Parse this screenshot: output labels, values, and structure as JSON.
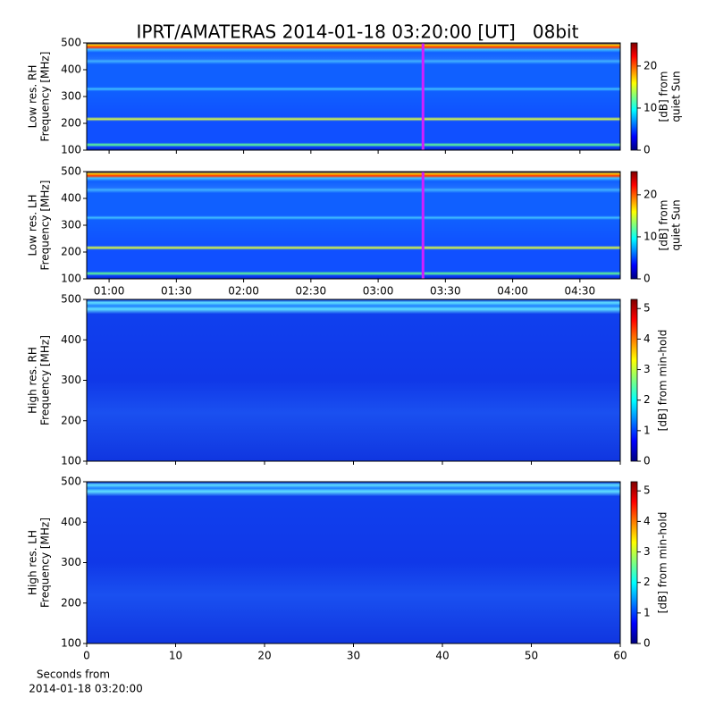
{
  "chart_data": [
    {
      "type": "heatmap",
      "title": "IPRT/AMATERAS 2014-01-18 03:20:00 [UT]   08bit",
      "ylabel": [
        "Low res. RH",
        "Frequency [MHz]"
      ],
      "ylim": [
        100,
        500
      ],
      "yticks": [
        100,
        200,
        300,
        400,
        500
      ],
      "xlim": [
        50,
        288
      ],
      "marker": 200,
      "marker_color": "#d020ff",
      "colorbar_label": [
        "[dB] from",
        "quiet Sun"
      ],
      "clim": [
        0,
        25.5
      ],
      "cticks": [
        0,
        10,
        20
      ]
    },
    {
      "type": "heatmap",
      "ylabel": [
        "Low res. LH",
        "Frequency [MHz]"
      ],
      "ylim": [
        100,
        500
      ],
      "yticks": [
        100,
        200,
        300,
        400,
        500
      ],
      "xlim": [
        50,
        288
      ],
      "xticks": [
        {
          "value": 60,
          "label": "01:00"
        },
        {
          "value": 90,
          "label": "01:30"
        },
        {
          "value": 120,
          "label": "02:00"
        },
        {
          "value": 150,
          "label": "02:30"
        },
        {
          "value": 180,
          "label": "03:00"
        },
        {
          "value": 210,
          "label": "03:30"
        },
        {
          "value": 240,
          "label": "04:00"
        },
        {
          "value": 270,
          "label": "04:30"
        }
      ],
      "marker": 200,
      "marker_color": "#d020ff",
      "colorbar_label": [
        "[dB] from",
        "quiet Sun"
      ],
      "clim": [
        0,
        25.5
      ],
      "cticks": [
        0,
        10,
        20
      ]
    },
    {
      "type": "heatmap",
      "ylabel": [
        "High res. RH",
        "Frequency [MHz]"
      ],
      "ylim": [
        100,
        500
      ],
      "yticks": [
        100,
        200,
        300,
        400,
        500
      ],
      "xlim": [
        0,
        60
      ],
      "colorbar_label": [
        "[dB] from min-hold"
      ],
      "clim": [
        0,
        5.3
      ],
      "cticks": [
        0,
        1,
        2,
        3,
        4,
        5
      ]
    },
    {
      "type": "heatmap",
      "ylabel": [
        "High res. LH",
        "Frequency [MHz]"
      ],
      "ylim": [
        100,
        500
      ],
      "yticks": [
        100,
        200,
        300,
        400,
        500
      ],
      "xlim": [
        0,
        60
      ],
      "xticks": [
        0,
        10,
        20,
        30,
        40,
        50,
        60
      ],
      "xlabel": [
        "Seconds from",
        "2014-01-18 03:20:00"
      ],
      "colorbar_label": [
        "[dB] from min-hold"
      ],
      "clim": [
        0,
        5.3
      ],
      "cticks": [
        0,
        1,
        2,
        3,
        4,
        5
      ]
    }
  ]
}
